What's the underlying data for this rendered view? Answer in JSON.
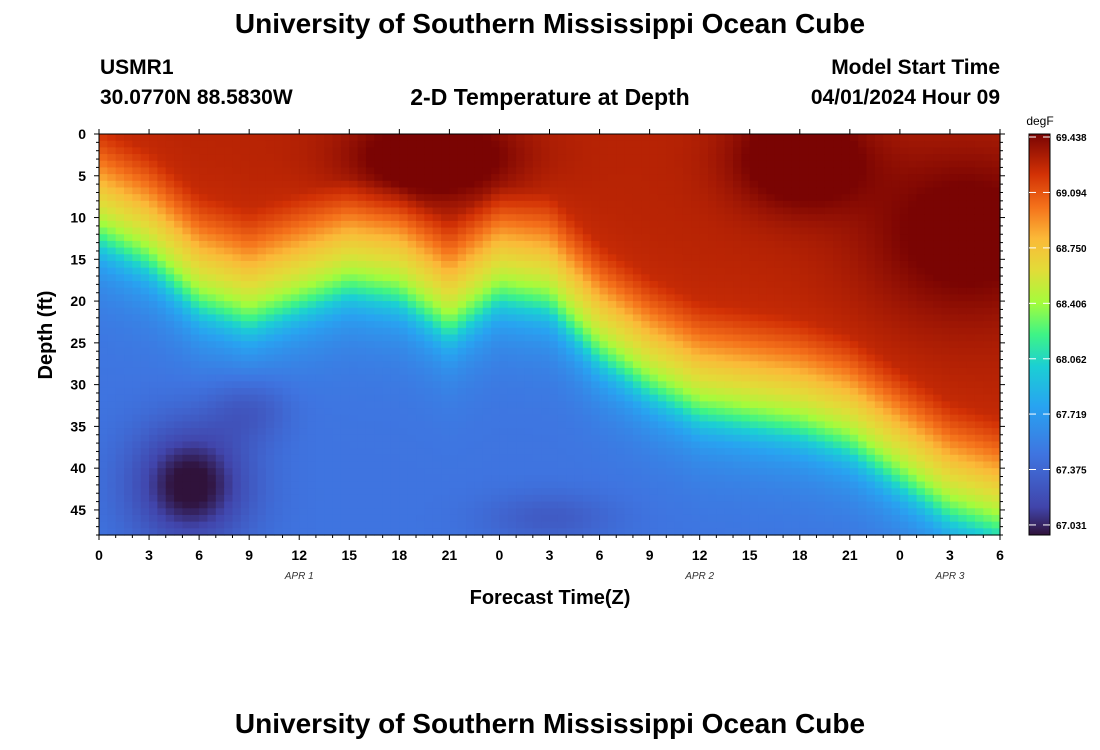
{
  "header": {
    "title": "University of Southern Mississippi Ocean Cube",
    "station": "USMR1",
    "coords": "30.0770N  88.5830W",
    "plot_title": "2-D Temperature at Depth",
    "start_label": "Model Start Time",
    "start_value": "04/01/2024 Hour 09",
    "footer_title": "University of Southern Mississippi Ocean Cube"
  },
  "chart_data": {
    "type": "heatmap",
    "title": "2-D Temperature at Depth",
    "xlabel": "Forecast Time(Z)",
    "ylabel": "Depth (ft)",
    "x_tick_labels": [
      "0",
      "3",
      "6",
      "9",
      "12",
      "15",
      "18",
      "21",
      "0",
      "3",
      "6",
      "9",
      "12",
      "15",
      "18",
      "21",
      "0",
      "3",
      "6"
    ],
    "x_range_hours": [
      0,
      54
    ],
    "y_ticks": [
      0,
      5,
      10,
      15,
      20,
      25,
      30,
      35,
      40,
      45
    ],
    "y_range": [
      0,
      48
    ],
    "date_labels": [
      {
        "text": "APR 1",
        "hour": 12
      },
      {
        "text": "APR 2",
        "hour": 36
      },
      {
        "text": "APR 3",
        "hour": 51
      }
    ],
    "colorbar": {
      "unit": "degF",
      "min": 66.95,
      "max": 69.438,
      "ticks": [
        "69.438",
        "69.094",
        "68.750",
        "68.406",
        "68.062",
        "67.719",
        "67.375",
        "67.031"
      ]
    },
    "thermocline_depth_ft": [
      {
        "hour": 0,
        "depth": 11
      },
      {
        "hour": 3,
        "depth": 14
      },
      {
        "hour": 6,
        "depth": 19
      },
      {
        "hour": 9,
        "depth": 21
      },
      {
        "hour": 12,
        "depth": 19
      },
      {
        "hour": 15,
        "depth": 17
      },
      {
        "hour": 18,
        "depth": 18
      },
      {
        "hour": 21,
        "depth": 22
      },
      {
        "hour": 24,
        "depth": 18
      },
      {
        "hour": 27,
        "depth": 19
      },
      {
        "hour": 30,
        "depth": 25
      },
      {
        "hour": 33,
        "depth": 29
      },
      {
        "hour": 36,
        "depth": 32
      },
      {
        "hour": 39,
        "depth": 33
      },
      {
        "hour": 42,
        "depth": 34
      },
      {
        "hour": 45,
        "depth": 36
      },
      {
        "hour": 48,
        "depth": 40
      },
      {
        "hour": 51,
        "depth": 44
      },
      {
        "hour": 54,
        "depth": 46
      }
    ]
  }
}
